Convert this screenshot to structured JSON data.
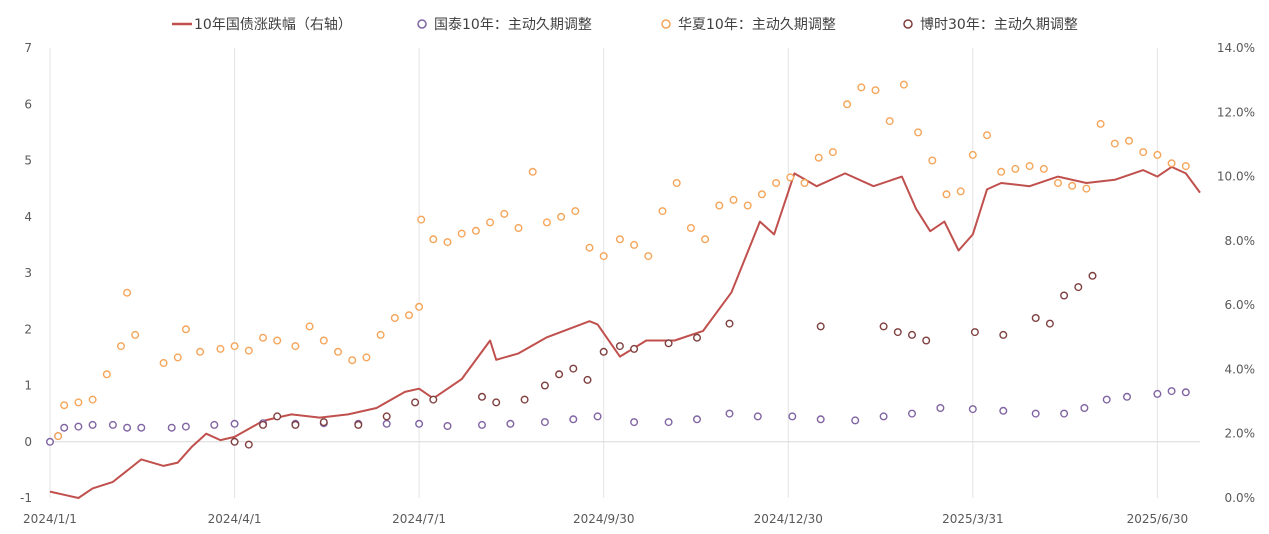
{
  "chart_data": {
    "type": "line",
    "legend_position": "top",
    "grid": "vertical",
    "x_range": [
      "2024-01-01",
      "2025-07-21"
    ],
    "x_ticks": [
      {
        "date": "2024-01-01",
        "label": "2024/1/1"
      },
      {
        "date": "2024-04-01",
        "label": "2024/4/1"
      },
      {
        "date": "2024-07-01",
        "label": "2024/7/1"
      },
      {
        "date": "2024-09-30",
        "label": "2024/9/30"
      },
      {
        "date": "2024-12-30",
        "label": "2024/12/30"
      },
      {
        "date": "2025-03-31",
        "label": "2025/3/31"
      },
      {
        "date": "2025-06-30",
        "label": "2025/6/30"
      }
    ],
    "y_left": {
      "range": [
        -1,
        7
      ],
      "ticks": [
        "-1",
        "0",
        "1",
        "2",
        "3",
        "4",
        "5",
        "6",
        "7"
      ]
    },
    "y_right": {
      "range": [
        0,
        14
      ],
      "ticks": [
        "0.0%",
        "2.0%",
        "4.0%",
        "6.0%",
        "8.0%",
        "10.0%",
        "12.0%",
        "14.0%"
      ]
    },
    "series": [
      {
        "name": "10年国债涨跌幅（右轴）",
        "axis": "right",
        "style": "line",
        "color": "#c0504d",
        "points": [
          [
            "2024-01-01",
            0.2
          ],
          [
            "2024-01-08",
            0.1
          ],
          [
            "2024-01-15",
            0.0
          ],
          [
            "2024-01-22",
            0.3
          ],
          [
            "2024-02-01",
            0.5
          ],
          [
            "2024-02-15",
            1.2
          ],
          [
            "2024-02-26",
            1.0
          ],
          [
            "2024-03-04",
            1.1
          ],
          [
            "2024-03-11",
            1.6
          ],
          [
            "2024-03-18",
            2.0
          ],
          [
            "2024-03-25",
            1.8
          ],
          [
            "2024-04-01",
            1.9
          ],
          [
            "2024-04-15",
            2.4
          ],
          [
            "2024-04-29",
            2.6
          ],
          [
            "2024-05-13",
            2.5
          ],
          [
            "2024-05-27",
            2.6
          ],
          [
            "2024-06-10",
            2.8
          ],
          [
            "2024-06-24",
            3.3
          ],
          [
            "2024-07-01",
            3.4
          ],
          [
            "2024-07-08",
            3.1
          ],
          [
            "2024-07-22",
            3.7
          ],
          [
            "2024-08-05",
            4.9
          ],
          [
            "2024-08-08",
            4.3
          ],
          [
            "2024-08-19",
            4.5
          ],
          [
            "2024-09-02",
            5.0
          ],
          [
            "2024-09-23",
            5.5
          ],
          [
            "2024-09-27",
            5.4
          ],
          [
            "2024-10-08",
            4.4
          ],
          [
            "2024-10-21",
            4.9
          ],
          [
            "2024-11-04",
            4.9
          ],
          [
            "2024-11-18",
            5.2
          ],
          [
            "2024-12-02",
            6.4
          ],
          [
            "2024-12-16",
            8.6
          ],
          [
            "2024-12-23",
            8.2
          ],
          [
            "2025-01-02",
            10.1
          ],
          [
            "2025-01-13",
            9.7
          ],
          [
            "2025-01-27",
            10.1
          ],
          [
            "2025-02-10",
            9.7
          ],
          [
            "2025-02-24",
            10.0
          ],
          [
            "2025-03-03",
            9.0
          ],
          [
            "2025-03-10",
            8.3
          ],
          [
            "2025-03-17",
            8.6
          ],
          [
            "2025-03-24",
            7.7
          ],
          [
            "2025-03-31",
            8.2
          ],
          [
            "2025-04-07",
            9.6
          ],
          [
            "2025-04-14",
            9.8
          ],
          [
            "2025-04-28",
            9.7
          ],
          [
            "2025-05-12",
            10.0
          ],
          [
            "2025-05-26",
            9.8
          ],
          [
            "2025-06-09",
            9.9
          ],
          [
            "2025-06-23",
            10.2
          ],
          [
            "2025-06-30",
            10.0
          ],
          [
            "2025-07-07",
            10.3
          ],
          [
            "2025-07-14",
            10.1
          ],
          [
            "2025-07-21",
            9.5
          ]
        ]
      },
      {
        "name": "国泰10年：主动久期调整",
        "axis": "left",
        "style": "scatter",
        "color": "#8064a2",
        "points": [
          [
            "2024-01-01",
            0.0
          ],
          [
            "2024-01-05",
            0.1
          ],
          [
            "2024-01-08",
            0.25
          ],
          [
            "2024-01-15",
            0.27
          ],
          [
            "2024-01-22",
            0.3
          ],
          [
            "2024-02-01",
            0.3
          ],
          [
            "2024-02-08",
            0.25
          ],
          [
            "2024-02-15",
            0.25
          ],
          [
            "2024-03-01",
            0.25
          ],
          [
            "2024-03-08",
            0.27
          ],
          [
            "2024-03-22",
            0.3
          ],
          [
            "2024-04-01",
            0.32
          ],
          [
            "2024-04-15",
            0.33
          ],
          [
            "2024-05-01",
            0.32
          ],
          [
            "2024-05-15",
            0.33
          ],
          [
            "2024-06-01",
            0.32
          ],
          [
            "2024-06-15",
            0.32
          ],
          [
            "2024-07-01",
            0.32
          ],
          [
            "2024-07-15",
            0.28
          ],
          [
            "2024-08-01",
            0.3
          ],
          [
            "2024-08-15",
            0.32
          ],
          [
            "2024-09-01",
            0.35
          ],
          [
            "2024-09-15",
            0.4
          ],
          [
            "2024-09-27",
            0.45
          ],
          [
            "2024-10-15",
            0.35
          ],
          [
            "2024-11-01",
            0.35
          ],
          [
            "2024-11-15",
            0.4
          ],
          [
            "2024-12-01",
            0.5
          ],
          [
            "2024-12-15",
            0.45
          ],
          [
            "2025-01-01",
            0.45
          ],
          [
            "2025-01-15",
            0.4
          ],
          [
            "2025-02-01",
            0.38
          ],
          [
            "2025-02-15",
            0.45
          ],
          [
            "2025-03-01",
            0.5
          ],
          [
            "2025-03-15",
            0.6
          ],
          [
            "2025-03-31",
            0.58
          ],
          [
            "2025-04-15",
            0.55
          ],
          [
            "2025-05-01",
            0.5
          ],
          [
            "2025-05-15",
            0.5
          ],
          [
            "2025-05-25",
            0.6
          ],
          [
            "2025-06-05",
            0.75
          ],
          [
            "2025-06-15",
            0.8
          ],
          [
            "2025-06-30",
            0.85
          ],
          [
            "2025-07-07",
            0.9
          ],
          [
            "2025-07-14",
            0.88
          ]
        ]
      },
      {
        "name": "华夏10年：主动久期调整",
        "axis": "left",
        "style": "scatter",
        "color": "#f5a55a",
        "points": [
          [
            "2024-01-05",
            0.1
          ],
          [
            "2024-01-08",
            0.65
          ],
          [
            "2024-01-15",
            0.7
          ],
          [
            "2024-01-22",
            0.75
          ],
          [
            "2024-01-29",
            1.2
          ],
          [
            "2024-02-05",
            1.7
          ],
          [
            "2024-02-08",
            2.65
          ],
          [
            "2024-02-12",
            1.9
          ],
          [
            "2024-02-26",
            1.4
          ],
          [
            "2024-03-04",
            1.5
          ],
          [
            "2024-03-08",
            2.0
          ],
          [
            "2024-03-15",
            1.6
          ],
          [
            "2024-03-25",
            1.65
          ],
          [
            "2024-04-01",
            1.7
          ],
          [
            "2024-04-08",
            1.62
          ],
          [
            "2024-04-15",
            1.85
          ],
          [
            "2024-04-22",
            1.8
          ],
          [
            "2024-05-01",
            1.7
          ],
          [
            "2024-05-08",
            2.05
          ],
          [
            "2024-05-15",
            1.8
          ],
          [
            "2024-05-22",
            1.6
          ],
          [
            "2024-05-29",
            1.45
          ],
          [
            "2024-06-05",
            1.5
          ],
          [
            "2024-06-12",
            1.9
          ],
          [
            "2024-06-19",
            2.2
          ],
          [
            "2024-06-26",
            2.25
          ],
          [
            "2024-07-01",
            2.4
          ],
          [
            "2024-07-02",
            3.95
          ],
          [
            "2024-07-08",
            3.6
          ],
          [
            "2024-07-15",
            3.55
          ],
          [
            "2024-07-22",
            3.7
          ],
          [
            "2024-07-29",
            3.75
          ],
          [
            "2024-08-05",
            3.9
          ],
          [
            "2024-08-12",
            4.05
          ],
          [
            "2024-08-19",
            3.8
          ],
          [
            "2024-08-26",
            4.8
          ],
          [
            "2024-09-02",
            3.9
          ],
          [
            "2024-09-09",
            4.0
          ],
          [
            "2024-09-16",
            4.1
          ],
          [
            "2024-09-23",
            3.45
          ],
          [
            "2024-09-30",
            3.3
          ],
          [
            "2024-10-08",
            3.6
          ],
          [
            "2024-10-15",
            3.5
          ],
          [
            "2024-10-22",
            3.3
          ],
          [
            "2024-10-29",
            4.1
          ],
          [
            "2024-11-05",
            4.6
          ],
          [
            "2024-11-12",
            3.8
          ],
          [
            "2024-11-19",
            3.6
          ],
          [
            "2024-11-26",
            4.2
          ],
          [
            "2024-12-03",
            4.3
          ],
          [
            "2024-12-10",
            4.2
          ],
          [
            "2024-12-17",
            4.4
          ],
          [
            "2024-12-24",
            4.6
          ],
          [
            "2024-12-31",
            4.7
          ],
          [
            "2025-01-07",
            4.6
          ],
          [
            "2025-01-14",
            5.05
          ],
          [
            "2025-01-21",
            5.15
          ],
          [
            "2025-01-28",
            6.0
          ],
          [
            "2025-02-04",
            6.3
          ],
          [
            "2025-02-11",
            6.25
          ],
          [
            "2025-02-18",
            5.7
          ],
          [
            "2025-02-25",
            6.35
          ],
          [
            "2025-03-04",
            5.5
          ],
          [
            "2025-03-11",
            5.0
          ],
          [
            "2025-03-18",
            4.4
          ],
          [
            "2025-03-25",
            4.45
          ],
          [
            "2025-03-31",
            5.1
          ],
          [
            "2025-04-07",
            5.45
          ],
          [
            "2025-04-14",
            4.8
          ],
          [
            "2025-04-21",
            4.85
          ],
          [
            "2025-04-28",
            4.9
          ],
          [
            "2025-05-05",
            4.85
          ],
          [
            "2025-05-12",
            4.6
          ],
          [
            "2025-05-19",
            4.55
          ],
          [
            "2025-05-26",
            4.5
          ],
          [
            "2025-06-02",
            5.65
          ],
          [
            "2025-06-09",
            5.3
          ],
          [
            "2025-06-16",
            5.35
          ],
          [
            "2025-06-23",
            5.15
          ],
          [
            "2025-06-30",
            5.1
          ],
          [
            "2025-07-07",
            4.95
          ],
          [
            "2025-07-14",
            4.9
          ]
        ]
      },
      {
        "name": "博时30年：主动久期调整",
        "axis": "left",
        "style": "scatter",
        "color": "#7f3f3f",
        "points": [
          [
            "2024-04-01",
            0.0
          ],
          [
            "2024-04-08",
            -0.05
          ],
          [
            "2024-04-15",
            0.3
          ],
          [
            "2024-04-22",
            0.45
          ],
          [
            "2024-05-01",
            0.3
          ],
          [
            "2024-05-15",
            0.35
          ],
          [
            "2024-06-01",
            0.3
          ],
          [
            "2024-06-15",
            0.45
          ],
          [
            "2024-06-29",
            0.7
          ],
          [
            "2024-07-08",
            0.75
          ],
          [
            "2024-08-01",
            0.8
          ],
          [
            "2024-08-08",
            0.7
          ],
          [
            "2024-08-22",
            0.75
          ],
          [
            "2024-09-01",
            1.0
          ],
          [
            "2024-09-08",
            1.2
          ],
          [
            "2024-09-15",
            1.3
          ],
          [
            "2024-09-22",
            1.1
          ],
          [
            "2024-09-30",
            1.6
          ],
          [
            "2024-10-08",
            1.7
          ],
          [
            "2024-10-15",
            1.65
          ],
          [
            "2024-11-01",
            1.75
          ],
          [
            "2024-11-15",
            1.85
          ],
          [
            "2024-12-01",
            2.1
          ],
          [
            "2025-01-15",
            2.05
          ],
          [
            "2025-02-15",
            2.05
          ],
          [
            "2025-02-22",
            1.95
          ],
          [
            "2025-03-01",
            1.9
          ],
          [
            "2025-03-08",
            1.8
          ],
          [
            "2025-04-01",
            1.95
          ],
          [
            "2025-04-15",
            1.9
          ],
          [
            "2025-05-01",
            2.2
          ],
          [
            "2025-05-08",
            2.1
          ],
          [
            "2025-05-15",
            2.6
          ],
          [
            "2025-05-22",
            2.75
          ],
          [
            "2025-05-29",
            2.95
          ]
        ]
      }
    ]
  }
}
